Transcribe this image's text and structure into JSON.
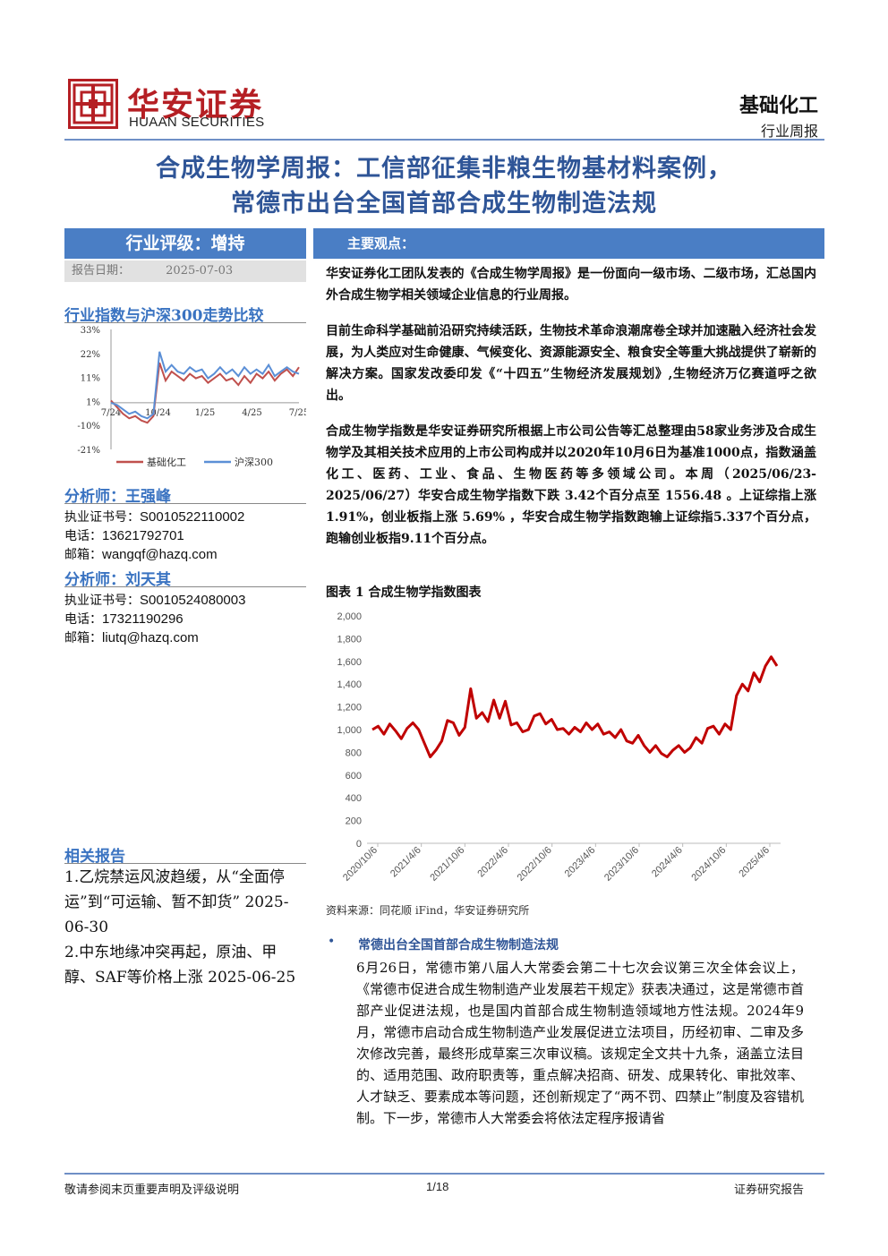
{
  "header": {
    "logo_cn": "华安证券",
    "logo_en": "HUAAN SECURITIES",
    "industry": "基础化工",
    "report_type": "行业周报"
  },
  "title": {
    "line1": "合成生物学周报：工信部征集非粮生物基材料案例，",
    "line2": "常德市出台全国首部合成生物制造法规"
  },
  "sidebar": {
    "rating": "行业评级：增持",
    "report_date_label": "报告日期：",
    "report_date": "2025-07-03",
    "index_chart_title": "行业指数与沪深300走势比较",
    "analyst1": {
      "heading": "分析师：王强峰",
      "cert_label": "执业证书号：",
      "cert": "S0010522110002",
      "phone_label": "电话：",
      "phone": "13621792701",
      "email_label": "邮箱：",
      "email": "wangqf@hazq.com"
    },
    "analyst2": {
      "heading": "分析师：刘天其",
      "cert_label": "执业证书号：",
      "cert": "S0010524080003",
      "phone_label": "电话：",
      "phone": "17321190296",
      "email_label": "邮箱：",
      "email": "liutq@hazq.com"
    },
    "related_heading": "相关报告",
    "related": [
      "1.乙烷禁运风波趋缓，从“全面停运”到“可运输、暂不卸货” 2025-06-30",
      "2.中东地缘冲突再起，原油、甲醇、SAF等价格上涨 2025-06-25"
    ]
  },
  "main": {
    "view_heading": "主要观点：",
    "p1": "华安证券化工团队发表的《合成生物学周报》是一份面向一级市场、二级市场，汇总国内外合成生物学相关领域企业信息的行业周报。",
    "p2": "目前生命科学基础前沿研究持续活跃，生物技术革命浪潮席卷全球并加速融入经济社会发展，为人类应对生命健康、气候变化、资源能源安全、粮食安全等重大挑战提供了崭新的解决方案。国家发改委印发《“十四五”生物经济发展规划》,生物经济万亿赛道呼之欲出。",
    "p3": "合成生物学指数是华安证券研究所根据上市公司公告等汇总整理由58家业务涉及合成生物学及其相关技术应用的上市公司构成并以2020年10月6日为基准1000点，指数涵盖化工、医药、工业、食品、生物医药等多领域公司。本周（2025/06/23-2025/06/27）华安合成生物学指数下跌 3.42个百分点至 1556.48 。上证综指上涨 1.91%，创业板指上涨 5.69% ，华安合成生物学指数跑输上证综指5.337个百分点，跑输创业板指9.11个百分点。",
    "figure_caption": "图表 1 合成生物学指数图表",
    "source": "资料来源：同花顺 iFind，华安证券研究所",
    "bullet_heading": "常德出台全国首部合成生物制造法规",
    "bullet_body": "6月26日，常德市第八届人大常委会第二十七次会议第三次全体会议上，《常德市促进合成生物制造产业发展若干规定》获表决通过，这是常德市首部产业促进法规，也是国内首部合成生物制造领域地方性法规。2024年9月，常德市启动合成生物制造产业发展促进立法项目，历经初审、二审及多次修改完善，最终形成草案三次审议稿。该规定全文共十九条，涵盖立法目的、适用范围、政府职责等，重点解决招商、研发、成果转化、审批效率、人才缺乏、要素成本等问题，还创新规定了“两不罚、四禁止”制度及容错机制。下一步，常德市人大常委会将依法定程序报请省"
  },
  "footer": {
    "left": "敬请参阅末页重要声明及评级说明",
    "page": "1/18",
    "right": "证券研究报告"
  },
  "colors": {
    "accent_blue": "#4a7ec5",
    "title_blue": "#2f5597",
    "brand_red": "#b51f24",
    "index_red": "#c00000",
    "hs300_blue": "#5b8fd6"
  },
  "chart_data": [
    {
      "type": "line",
      "x_ticks": [
        "7/24",
        "10/24",
        "1/25",
        "4/25",
        "7/25"
      ],
      "y_ticks": [
        "33%",
        "22%",
        "11%",
        "1%",
        "-10%",
        "-21%"
      ],
      "ylim": [
        -21,
        33
      ],
      "series": [
        {
          "name": "基础化工",
          "color": "#c0504d",
          "values": [
            1,
            -2,
            -5,
            -7,
            -6,
            -8,
            -9,
            -6,
            18,
            10,
            14,
            12,
            10,
            13,
            11,
            12,
            9,
            11,
            13,
            10,
            11,
            8,
            12,
            9,
            13,
            11,
            14,
            10,
            13,
            15,
            12,
            16
          ]
        },
        {
          "name": "沪深300",
          "color": "#5b8fd6",
          "values": [
            0,
            -1,
            -3,
            -5,
            -4,
            -6,
            -7,
            -5,
            23,
            14,
            17,
            14,
            13,
            16,
            14,
            15,
            11,
            13,
            16,
            13,
            15,
            12,
            16,
            13,
            15,
            13,
            17,
            12,
            14,
            16,
            14,
            13
          ]
        }
      ],
      "legend_position": "bottom"
    },
    {
      "type": "line",
      "x_ticks": [
        "2020/10/6",
        "2021/4/6",
        "2021/10/6",
        "2022/4/6",
        "2022/10/6",
        "2023/4/6",
        "2023/10/6",
        "2024/4/6",
        "2024/10/6",
        "2025/4/6"
      ],
      "y_ticks": [
        "0",
        "200",
        "400",
        "600",
        "800",
        "1,000",
        "1,200",
        "1,400",
        "1,600",
        "1,800",
        "2,000"
      ],
      "ylim": [
        0,
        2000
      ],
      "series": [
        {
          "name": "合成生物学指数",
          "color": "#c00000",
          "values": [
            1000,
            1030,
            960,
            1050,
            990,
            920,
            1010,
            1060,
            1000,
            880,
            760,
            820,
            900,
            1080,
            1060,
            950,
            1020,
            1360,
            1100,
            1150,
            1070,
            1260,
            1100,
            1250,
            1040,
            1060,
            980,
            1000,
            1120,
            1140,
            1050,
            1090,
            1000,
            1010,
            960,
            1020,
            980,
            1060,
            1000,
            1050,
            960,
            980,
            930,
            1000,
            900,
            880,
            950,
            860,
            800,
            860,
            790,
            760,
            820,
            860,
            800,
            840,
            930,
            880,
            1010,
            1030,
            960,
            1050,
            1000,
            1300,
            1400,
            1340,
            1500,
            1420,
            1560,
            1640,
            1560
          ]
        }
      ]
    }
  ]
}
